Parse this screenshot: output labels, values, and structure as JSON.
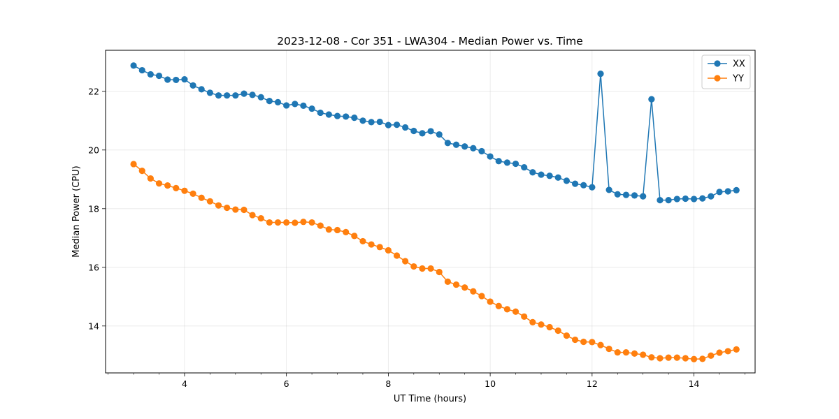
{
  "chart_data": {
    "type": "line",
    "title": "2023-12-08 - Cor 351 - LWA304 - Median Power vs. Time",
    "xlabel": "UT Time (hours)",
    "ylabel": "Median Power (CPU)",
    "xlim": [
      2.45,
      15.2
    ],
    "ylim": [
      12.4,
      23.4
    ],
    "xticks": [
      4,
      6,
      8,
      10,
      12,
      14
    ],
    "xtick_labels": [
      "4",
      "6",
      "8",
      "10",
      "12",
      "14"
    ],
    "xminor_step": 0.5,
    "yticks": [
      14,
      16,
      18,
      20,
      22
    ],
    "ytick_labels": [
      "14",
      "16",
      "18",
      "20",
      "22"
    ],
    "grid": true,
    "legend_position": "top-right",
    "x": [
      3.0,
      3.167,
      3.333,
      3.5,
      3.667,
      3.833,
      4.0,
      4.167,
      4.333,
      4.5,
      4.667,
      4.833,
      5.0,
      5.167,
      5.333,
      5.5,
      5.667,
      5.833,
      6.0,
      6.167,
      6.333,
      6.5,
      6.667,
      6.833,
      7.0,
      7.167,
      7.333,
      7.5,
      7.667,
      7.833,
      8.0,
      8.167,
      8.333,
      8.5,
      8.667,
      8.833,
      9.0,
      9.167,
      9.333,
      9.5,
      9.667,
      9.833,
      10.0,
      10.167,
      10.333,
      10.5,
      10.667,
      10.833,
      11.0,
      11.167,
      11.333,
      11.5,
      11.667,
      11.833,
      12.0,
      12.167,
      12.333,
      12.5,
      12.667,
      12.833,
      13.0,
      13.167,
      13.333,
      13.5,
      13.667,
      13.833,
      14.0,
      14.167,
      14.333,
      14.5,
      14.667,
      14.833
    ],
    "series": [
      {
        "name": "XX",
        "color": "#1f77b4",
        "values": [
          22.88,
          22.72,
          22.58,
          22.53,
          22.4,
          22.39,
          22.41,
          22.2,
          22.07,
          21.95,
          21.86,
          21.86,
          21.86,
          21.92,
          21.88,
          21.8,
          21.67,
          21.63,
          21.52,
          21.57,
          21.51,
          21.41,
          21.27,
          21.21,
          21.16,
          21.14,
          21.1,
          21.0,
          20.95,
          20.96,
          20.85,
          20.86,
          20.77,
          20.65,
          20.57,
          20.64,
          20.53,
          20.24,
          20.18,
          20.12,
          20.06,
          19.96,
          19.78,
          19.62,
          19.57,
          19.53,
          19.41,
          19.24,
          19.16,
          19.12,
          19.06,
          18.95,
          18.85,
          18.8,
          18.73,
          22.6,
          18.64,
          18.49,
          18.47,
          18.45,
          18.42,
          21.73,
          18.29,
          18.29,
          18.33,
          18.34,
          18.33,
          18.35,
          18.42,
          18.57,
          18.59,
          18.63
        ]
      },
      {
        "name": "YY",
        "color": "#ff7f0e",
        "values": [
          19.52,
          19.29,
          19.03,
          18.86,
          18.79,
          18.7,
          18.61,
          18.51,
          18.37,
          18.25,
          18.11,
          18.03,
          17.97,
          17.96,
          17.78,
          17.67,
          17.53,
          17.53,
          17.53,
          17.52,
          17.55,
          17.53,
          17.42,
          17.29,
          17.27,
          17.2,
          17.07,
          16.89,
          16.78,
          16.69,
          16.58,
          16.4,
          16.21,
          16.03,
          15.96,
          15.96,
          15.84,
          15.51,
          15.41,
          15.31,
          15.18,
          15.02,
          14.83,
          14.68,
          14.57,
          14.49,
          14.32,
          14.13,
          14.05,
          13.96,
          13.84,
          13.67,
          13.53,
          13.46,
          13.45,
          13.35,
          13.22,
          13.1,
          13.1,
          13.06,
          13.02,
          12.93,
          12.9,
          12.92,
          12.92,
          12.9,
          12.87,
          12.88,
          12.99,
          13.09,
          13.14,
          13.2
        ]
      }
    ]
  }
}
